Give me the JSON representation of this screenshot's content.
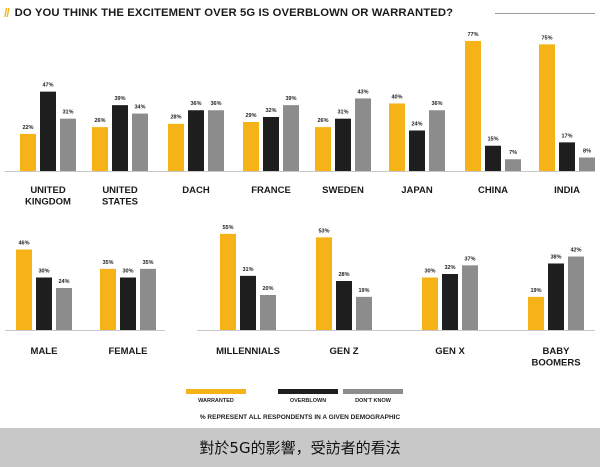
{
  "title": "DO YOU THINK THE EXCITEMENT OVER 5G IS OVERBLOWN OR WARRANTED?",
  "footer_caption": "對於5G的影響，受訪者的看法",
  "chart_data": [
    {
      "type": "bar",
      "categories": [
        "UNITED KINGDOM",
        "UNITED STATES",
        "DACH",
        "FRANCE",
        "SWEDEN",
        "JAPAN",
        "CHINA",
        "INDIA"
      ],
      "category_lines": [
        [
          "UNITED",
          "KINGDOM"
        ],
        [
          "UNITED",
          "STATES"
        ],
        [
          "DACH"
        ],
        [
          "FRANCE"
        ],
        [
          "SWEDEN"
        ],
        [
          "JAPAN"
        ],
        [
          "CHINA"
        ],
        [
          "INDIA"
        ]
      ],
      "series": [
        {
          "name": "WARRANTED",
          "values": [
            22,
            26,
            28,
            29,
            26,
            40,
            77,
            75
          ]
        },
        {
          "name": "OVERBLOWN",
          "values": [
            47,
            39,
            36,
            32,
            31,
            24,
            15,
            17
          ]
        },
        {
          "name": "DON'T KNOW",
          "values": [
            31,
            34,
            36,
            39,
            43,
            36,
            7,
            8
          ]
        }
      ],
      "ylim": [
        0,
        100
      ],
      "value_suffix": "%"
    },
    {
      "type": "bar",
      "categories": [
        "MALE",
        "FEMALE"
      ],
      "category_lines": [
        [
          "MALE"
        ],
        [
          "FEMALE"
        ]
      ],
      "series": [
        {
          "name": "WARRANTED",
          "values": [
            46,
            35
          ]
        },
        {
          "name": "OVERBLOWN",
          "values": [
            30,
            30
          ]
        },
        {
          "name": "DON'T KNOW",
          "values": [
            24,
            35
          ]
        }
      ],
      "ylim": [
        0,
        100
      ],
      "value_suffix": "%"
    },
    {
      "type": "bar",
      "categories": [
        "MILLENNIALS",
        "GEN Z",
        "GEN X",
        "BABY BOOMERS"
      ],
      "category_lines": [
        [
          "MILLENNIALS"
        ],
        [
          "GEN Z"
        ],
        [
          "GEN X"
        ],
        [
          "BABY",
          "BOOMERS"
        ]
      ],
      "series": [
        {
          "name": "WARRANTED",
          "values": [
            55,
            53,
            30,
            19
          ]
        },
        {
          "name": "OVERBLOWN",
          "values": [
            31,
            28,
            32,
            38
          ]
        },
        {
          "name": "DON'T KNOW",
          "values": [
            20,
            19,
            37,
            42
          ]
        }
      ],
      "ylim": [
        0,
        100
      ],
      "value_suffix": "%"
    }
  ],
  "legend": [
    {
      "label": "WARRANTED",
      "color": "#f5b318"
    },
    {
      "label": "OVERBLOWN",
      "color": "#1e1e1e"
    },
    {
      "label": "DON'T KNOW",
      "color": "#8c8c8c"
    }
  ],
  "note": "% REPRESENT ALL RESPONDENTS IN A GIVEN DEMOGRAPHIC",
  "colors": {
    "warranted": "#f5b318",
    "overblown": "#1e1e1e",
    "dont_know": "#8c8c8c",
    "baseline": "#c8c8c8"
  }
}
